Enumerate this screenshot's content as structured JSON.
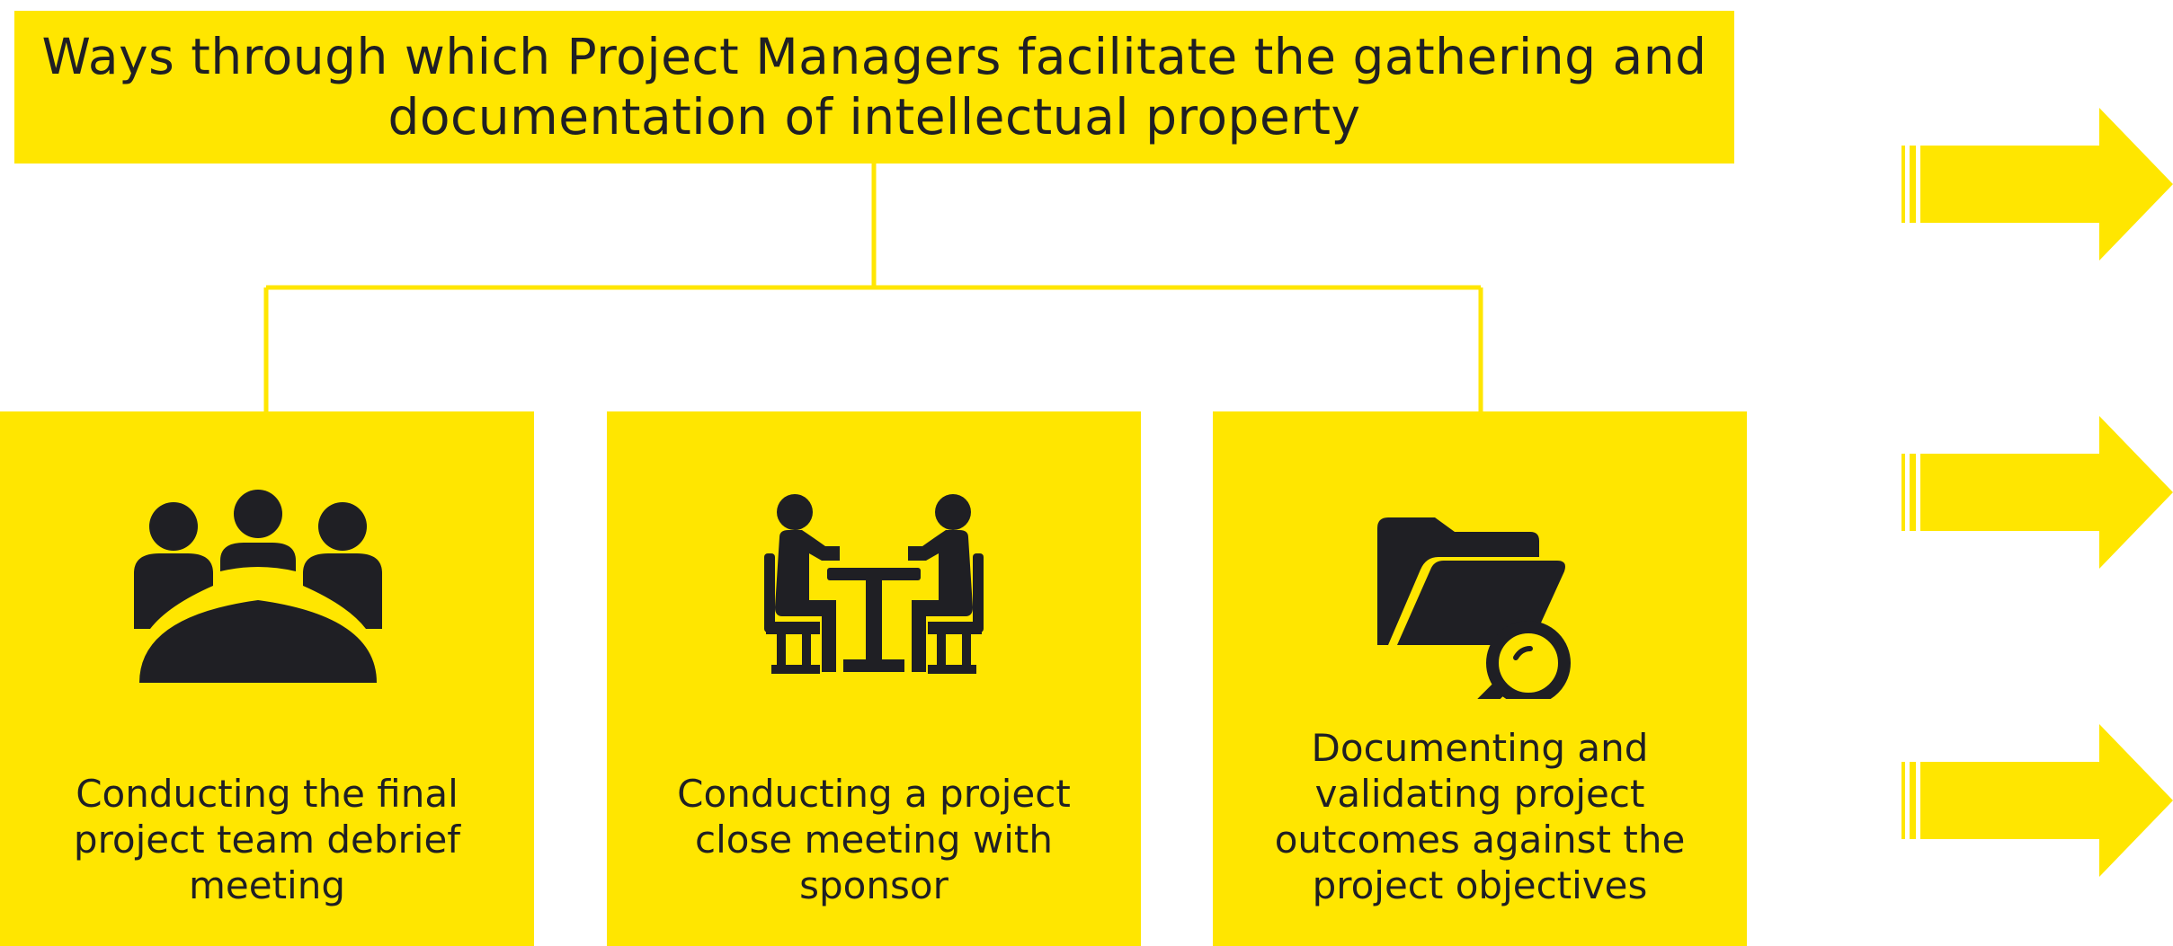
{
  "title": "Ways through which Project Managers facilitate the gathering and documentation of intellectual property",
  "colors": {
    "accent_yellow": "#FFE600",
    "icon_dark": "#1f1f24",
    "background": "#ffffff"
  },
  "cards": [
    {
      "icon": "team-meeting-icon",
      "text": "Conducting the final project team debrief meeting"
    },
    {
      "icon": "two-people-table-icon",
      "text": "Conducting a project close meeting with sponsor"
    },
    {
      "icon": "folder-search-icon",
      "text": "Documenting and validating project outcomes against the project objectives"
    }
  ],
  "arrows": [
    {
      "icon": "right-arrow-icon"
    },
    {
      "icon": "right-arrow-icon"
    },
    {
      "icon": "right-arrow-icon"
    }
  ]
}
